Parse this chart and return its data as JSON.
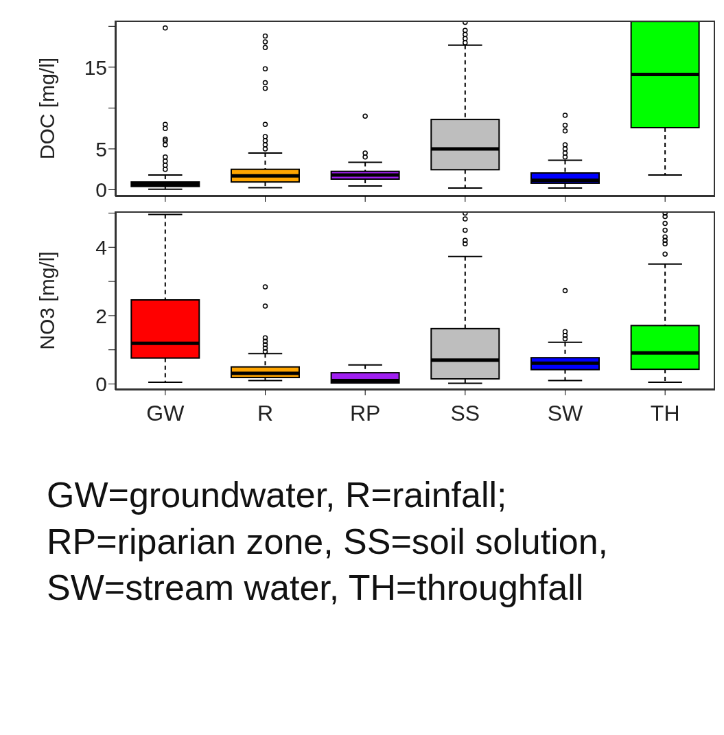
{
  "chart_data": [
    {
      "type": "box",
      "ylabel": "DOC [mg/l]",
      "categories": [
        null,
        null,
        null,
        null,
        null,
        null
      ],
      "tick_labels": "y",
      "colors": [
        "#ff0000",
        "#ffa500",
        "#a020f0",
        "#bebebe",
        "#0000ff",
        "#00ff00"
      ],
      "ylim": [
        -0.8,
        20.7
      ],
      "yticks": [
        0,
        5,
        {
          "value": 10,
          "label": null
        },
        15,
        {
          "value": 20,
          "label": null
        }
      ],
      "boxes": [
        {
          "low": 0.07,
          "q1": 0.4,
          "median": 0.66,
          "q3": 0.95,
          "high": 1.8,
          "outliers": [
            2.5,
            3,
            3.5,
            4,
            5.5,
            6,
            6.2,
            7.5,
            8,
            19.8
          ]
        },
        {
          "low": 0.25,
          "q1": 0.95,
          "median": 1.7,
          "q3": 2.5,
          "high": 4.5,
          "outliers": [
            5,
            5.5,
            6,
            6.5,
            8,
            12.4,
            13.1,
            14.8,
            17.4,
            18.1,
            18.8
          ]
        },
        {
          "low": 0.45,
          "q1": 1.3,
          "median": 1.8,
          "q3": 2.25,
          "high": 3.35,
          "outliers": [
            4,
            4.5,
            9
          ]
        },
        {
          "low": 0.2,
          "q1": 2.45,
          "median": 5,
          "q3": 8.6,
          "high": 17.7,
          "outliers": [
            18,
            18.5,
            19,
            19.5,
            20.5
          ]
        },
        {
          "low": 0.2,
          "q1": 0.8,
          "median": 1.15,
          "q3": 2.05,
          "high": 3.6,
          "outliers": [
            4,
            4.5,
            5,
            5.5,
            7.2,
            7.9,
            9.1
          ]
        },
        {
          "low": 1.8,
          "q1": 7.6,
          "median": 14.1,
          "q3": 20.6,
          "high": 20.6
        }
      ]
    },
    {
      "type": "box",
      "ylabel": "NO3 [mg/l]",
      "categories": [
        "GW",
        "R",
        "RP",
        "SS",
        "SW",
        "TH"
      ],
      "colors": [
        "#ff0000",
        "#ffa500",
        "#a020f0",
        "#bebebe",
        "#0000ff",
        "#00ff00"
      ],
      "ylim": [
        -0.17,
        5.05
      ],
      "yticks": [
        0,
        {
          "value": 1,
          "label": null
        },
        2,
        {
          "value": 3,
          "label": null
        },
        4,
        {
          "value": 5,
          "label": null
        }
      ],
      "boxes": [
        {
          "low": 0.05,
          "q1": 0.76,
          "median": 1.19,
          "q3": 2.46,
          "high": 4.96
        },
        {
          "low": 0.1,
          "q1": 0.19,
          "median": 0.31,
          "q3": 0.5,
          "high": 0.89,
          "outliers": [
            0.95,
            1.05,
            1.15,
            1.25,
            1.35,
            2.28,
            2.84
          ]
        },
        {
          "low": 0.03,
          "q1": 0.03,
          "median": 0.1,
          "q3": 0.33,
          "high": 0.56
        },
        {
          "low": 0.02,
          "q1": 0.15,
          "median": 0.7,
          "q3": 1.62,
          "high": 3.73,
          "outliers": [
            4.1,
            4.2,
            4.5,
            4.83,
            5
          ]
        },
        {
          "low": 0.1,
          "q1": 0.42,
          "median": 0.61,
          "q3": 0.77,
          "high": 1.22,
          "outliers": [
            1.32,
            1.42,
            1.53,
            2.73
          ]
        },
        {
          "low": 0.05,
          "q1": 0.43,
          "median": 0.91,
          "q3": 1.71,
          "high": 3.51,
          "outliers": [
            3.8,
            4.1,
            4.2,
            4.3,
            4.5,
            4.7,
            4.9,
            5
          ]
        }
      ],
      "annotations": [
        "GW=groundwater, R=rainfall; RP=riparian zone, SS=soil solution, SW=stream water, TH=throughfall"
      ]
    }
  ]
}
